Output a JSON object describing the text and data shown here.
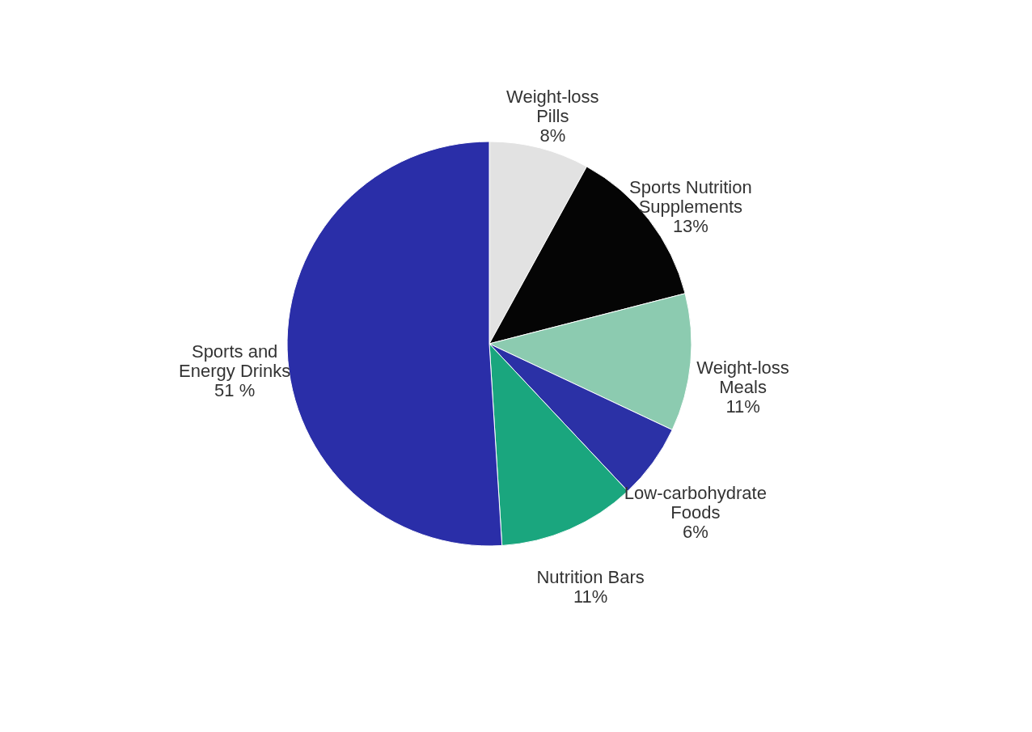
{
  "chart_data": {
    "type": "pie",
    "categories": [
      "Weight-loss Pills",
      "Sports Nutrition Supplements",
      "Weight-loss Meals",
      "Low-carbohydrate Foods",
      "Nutrition Bars",
      "Sports and Energy Drinks"
    ],
    "values": [
      8,
      13,
      11,
      6,
      11,
      51
    ],
    "value_labels": [
      "8%",
      "13%",
      "11%",
      "6%",
      "11%",
      "51 %"
    ],
    "colors": [
      "#e2e2e2",
      "#050505",
      "#8ccbb0",
      "#2b31a6",
      "#1aa67e",
      "#2a2ea8"
    ],
    "legend": false
  }
}
